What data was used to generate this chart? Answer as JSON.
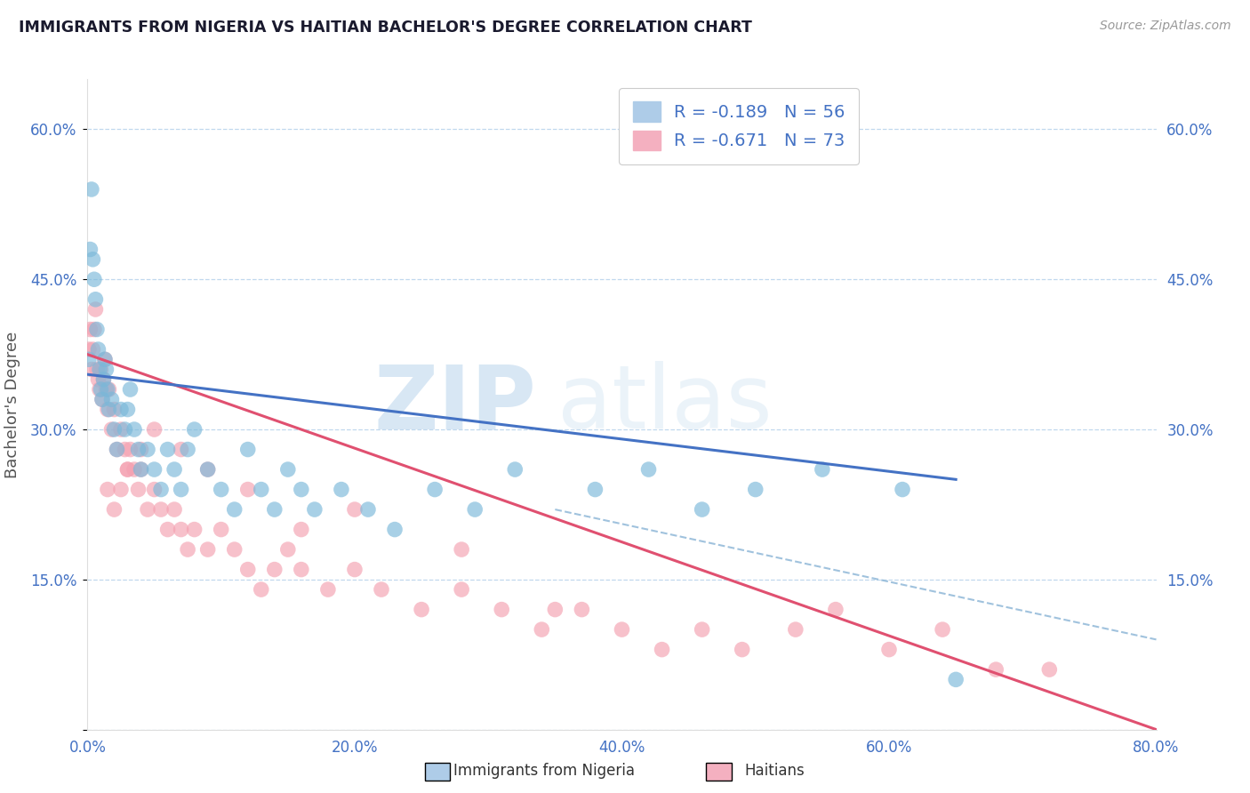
{
  "title": "IMMIGRANTS FROM NIGERIA VS HAITIAN BACHELOR'S DEGREE CORRELATION CHART",
  "source": "Source: ZipAtlas.com",
  "ylabel": "Bachelor's Degree",
  "xlim": [
    0.0,
    0.8
  ],
  "ylim": [
    0.0,
    0.65
  ],
  "xticks": [
    0.0,
    0.2,
    0.4,
    0.6,
    0.8
  ],
  "yticks": [
    0.0,
    0.15,
    0.3,
    0.45,
    0.6
  ],
  "ytick_labels": [
    "",
    "15.0%",
    "30.0%",
    "45.0%",
    "60.0%"
  ],
  "xtick_labels": [
    "0.0%",
    "20.0%",
    "40.0%",
    "60.0%",
    "80.0%"
  ],
  "nigeria_color": "#7ab8d9",
  "haitian_color": "#f4a0b0",
  "nigeria_line_color": "#4472c4",
  "haitian_line_color": "#e05070",
  "dash_color": "#90b8d8",
  "legend_label1": "R = -0.189   N = 56",
  "legend_label2": "R = -0.671   N = 73",
  "watermark_zip": "ZIP",
  "watermark_atlas": "atlas",
  "nigeria_x": [
    0.001,
    0.002,
    0.003,
    0.004,
    0.005,
    0.006,
    0.007,
    0.008,
    0.009,
    0.01,
    0.011,
    0.012,
    0.013,
    0.014,
    0.015,
    0.016,
    0.018,
    0.02,
    0.022,
    0.025,
    0.028,
    0.03,
    0.032,
    0.035,
    0.038,
    0.04,
    0.045,
    0.05,
    0.055,
    0.06,
    0.065,
    0.07,
    0.075,
    0.08,
    0.09,
    0.1,
    0.11,
    0.12,
    0.13,
    0.14,
    0.15,
    0.16,
    0.17,
    0.19,
    0.21,
    0.23,
    0.26,
    0.29,
    0.32,
    0.38,
    0.42,
    0.46,
    0.5,
    0.55,
    0.61,
    0.65
  ],
  "nigeria_y": [
    0.37,
    0.48,
    0.54,
    0.47,
    0.45,
    0.43,
    0.4,
    0.38,
    0.36,
    0.34,
    0.33,
    0.35,
    0.37,
    0.36,
    0.34,
    0.32,
    0.33,
    0.3,
    0.28,
    0.32,
    0.3,
    0.32,
    0.34,
    0.3,
    0.28,
    0.26,
    0.28,
    0.26,
    0.24,
    0.28,
    0.26,
    0.24,
    0.28,
    0.3,
    0.26,
    0.24,
    0.22,
    0.28,
    0.24,
    0.22,
    0.26,
    0.24,
    0.22,
    0.24,
    0.22,
    0.2,
    0.24,
    0.22,
    0.26,
    0.24,
    0.26,
    0.22,
    0.24,
    0.26,
    0.24,
    0.05
  ],
  "haitian_x": [
    0.001,
    0.002,
    0.003,
    0.004,
    0.005,
    0.006,
    0.007,
    0.008,
    0.009,
    0.01,
    0.011,
    0.012,
    0.013,
    0.014,
    0.015,
    0.016,
    0.018,
    0.02,
    0.022,
    0.025,
    0.028,
    0.03,
    0.032,
    0.035,
    0.038,
    0.04,
    0.045,
    0.05,
    0.055,
    0.06,
    0.065,
    0.07,
    0.075,
    0.08,
    0.09,
    0.1,
    0.11,
    0.12,
    0.13,
    0.14,
    0.15,
    0.16,
    0.18,
    0.2,
    0.22,
    0.25,
    0.28,
    0.31,
    0.34,
    0.37,
    0.4,
    0.43,
    0.46,
    0.49,
    0.53,
    0.56,
    0.6,
    0.64,
    0.68,
    0.72,
    0.35,
    0.28,
    0.2,
    0.16,
    0.12,
    0.09,
    0.07,
    0.05,
    0.04,
    0.03,
    0.025,
    0.02,
    0.015
  ],
  "haitian_y": [
    0.38,
    0.4,
    0.36,
    0.38,
    0.4,
    0.42,
    0.36,
    0.35,
    0.34,
    0.36,
    0.33,
    0.35,
    0.37,
    0.34,
    0.32,
    0.34,
    0.3,
    0.32,
    0.28,
    0.3,
    0.28,
    0.26,
    0.28,
    0.26,
    0.24,
    0.26,
    0.22,
    0.24,
    0.22,
    0.2,
    0.22,
    0.2,
    0.18,
    0.2,
    0.18,
    0.2,
    0.18,
    0.16,
    0.14,
    0.16,
    0.18,
    0.16,
    0.14,
    0.16,
    0.14,
    0.12,
    0.14,
    0.12,
    0.1,
    0.12,
    0.1,
    0.08,
    0.1,
    0.08,
    0.1,
    0.12,
    0.08,
    0.1,
    0.06,
    0.06,
    0.12,
    0.18,
    0.22,
    0.2,
    0.24,
    0.26,
    0.28,
    0.3,
    0.28,
    0.26,
    0.24,
    0.22,
    0.24
  ],
  "nigeria_trend_x": [
    0.0,
    0.65
  ],
  "nigeria_trend_y": [
    0.355,
    0.25
  ],
  "haitian_trend_x": [
    0.0,
    0.8
  ],
  "haitian_trend_y": [
    0.375,
    0.0
  ],
  "dash_trend_x": [
    0.35,
    0.8
  ],
  "dash_trend_y": [
    0.22,
    0.09
  ]
}
